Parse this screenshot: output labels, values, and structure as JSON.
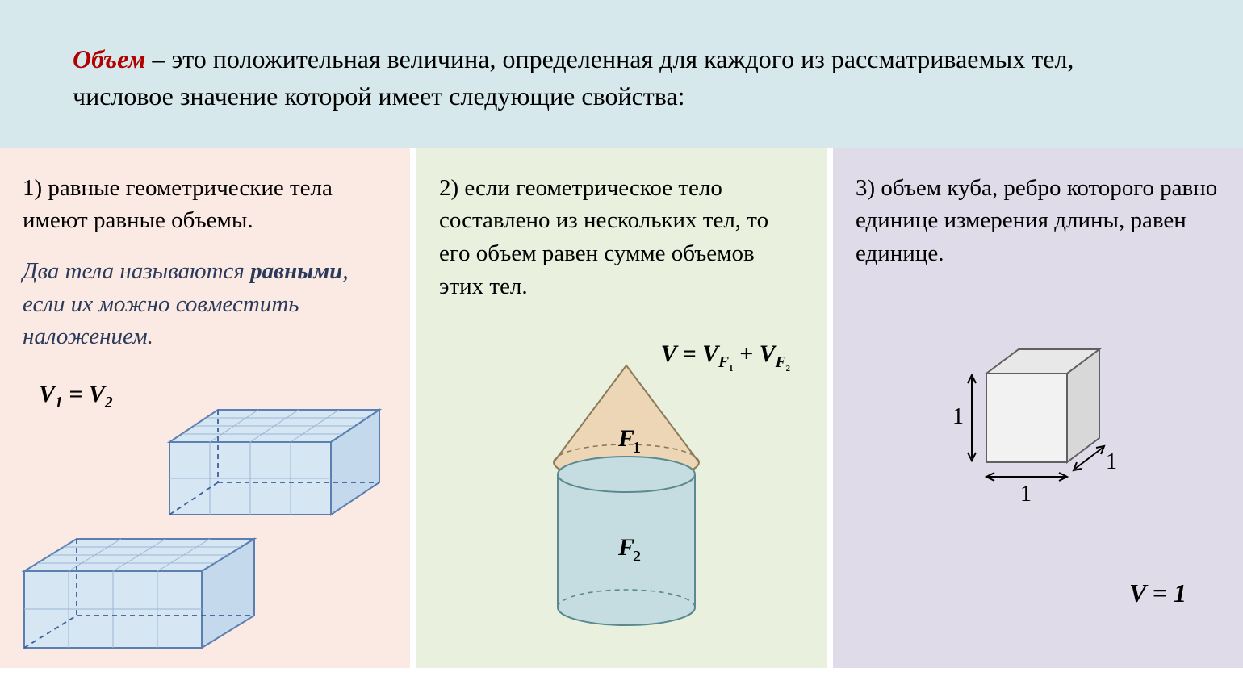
{
  "header": {
    "term": "Объем",
    "rest": " – это положительная величина, определенная для каждого из рассматриваемых тел, числовое значение которой имеет следующие свойства:"
  },
  "col1": {
    "text": "1) равные геометрические тела имеют равные объемы.",
    "note_pre": "Два тела называются ",
    "note_em": "равными",
    "note_post": ", если их можно совместить наложением.",
    "formula_html": "V<span class='sub'>1</span> = V<span class='sub'>2</span>",
    "bg": "#fbe9e3",
    "box_fill": "#d6e6f2",
    "box_stroke": "#5a7fb0",
    "box_dash": "#3a5fa0"
  },
  "col2": {
    "text": "2) если геометрическое тело составлено из нескольких тел, то его объем равен сумме объемов этих тел.",
    "formula_html": "V = V<span class='sub'>F<span class='subsub'>1</span></span> + V<span class='sub'>F<span class='subsub'>2</span></span>",
    "label_f1": "F",
    "label_f1_sub": "1",
    "label_f2": "F",
    "label_f2_sub": "2",
    "bg": "#e9f0dd",
    "cone_fill": "#ecd6b5",
    "cone_stroke": "#8a7a5a",
    "cyl_fill": "#c5dde0",
    "cyl_stroke": "#5a8a90"
  },
  "col3": {
    "text": "3) объем куба, ребро которого равно единице измерения длины, равен единице.",
    "formula_html": "V = 1",
    "label_one": "1",
    "bg": "#dfdbe9",
    "cube_front": "#f2f2f2",
    "cube_side": "#d8d8d8",
    "cube_top": "#e8e8e8",
    "cube_stroke": "#606060"
  }
}
